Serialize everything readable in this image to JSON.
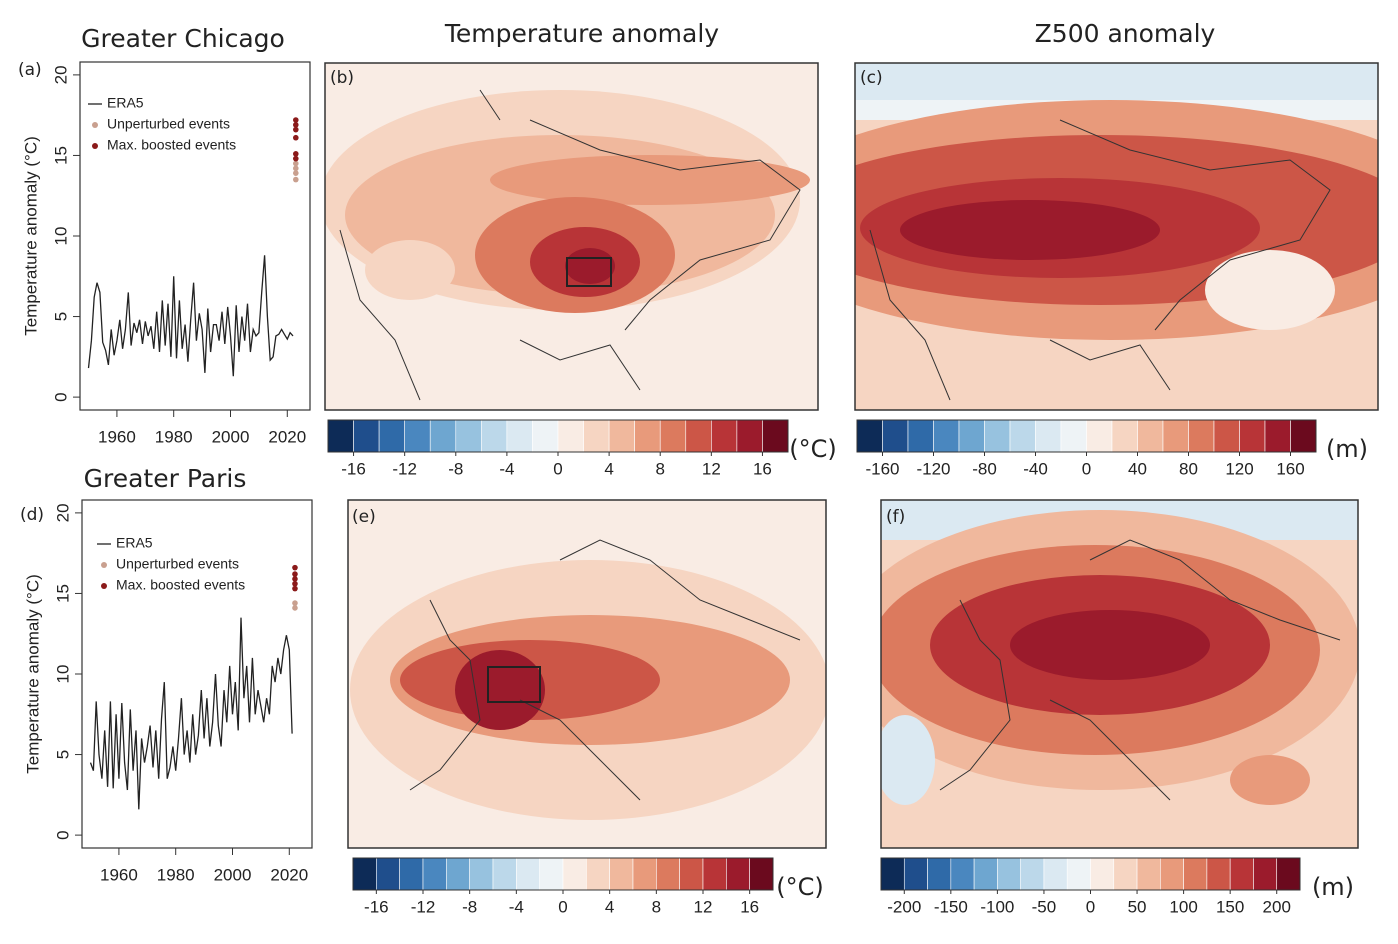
{
  "chart_data": [
    {
      "type": "line",
      "title": "Greater Chicago",
      "panel_label": "(a)",
      "y_label": "Temperature anomaly (°C)",
      "x": [
        1950,
        1951,
        1952,
        1953,
        1954,
        1955,
        1956,
        1957,
        1958,
        1959,
        1960,
        1961,
        1962,
        1963,
        1964,
        1965,
        1966,
        1967,
        1968,
        1969,
        1970,
        1971,
        1972,
        1973,
        1974,
        1975,
        1976,
        1977,
        1978,
        1979,
        1980,
        1981,
        1982,
        1983,
        1984,
        1985,
        1986,
        1987,
        1988,
        1989,
        1990,
        1991,
        1992,
        1993,
        1994,
        1995,
        1996,
        1997,
        1998,
        1999,
        2000,
        2001,
        2002,
        2003,
        2004,
        2005,
        2006,
        2007,
        2008,
        2009,
        2010,
        2011,
        2012,
        2013,
        2014,
        2015,
        2016,
        2017,
        2018,
        2019,
        2020,
        2021,
        2022
      ],
      "series": [
        {
          "name": "ERA5",
          "type": "line",
          "color": "#222222",
          "values": [
            1.8,
            3.5,
            6.2,
            7.1,
            6.5,
            3.4,
            2.9,
            2.0,
            4.2,
            2.6,
            3.5,
            4.8,
            3.0,
            4.2,
            6.5,
            3.2,
            4.6,
            4.0,
            4.8,
            3.3,
            4.7,
            3.8,
            4.4,
            3.0,
            5.3,
            2.8,
            6.0,
            3.2,
            5.8,
            2.5,
            7.5,
            2.4,
            6.0,
            3.0,
            4.5,
            2.2,
            4.8,
            7.1,
            3.5,
            5.2,
            4.2,
            1.5,
            5.5,
            2.8,
            4.5,
            4.5,
            3.5,
            5.3,
            3.3,
            5.6,
            3.8,
            1.3,
            5.7,
            2.8,
            5.0,
            3.5,
            5.8,
            2.8,
            4.2,
            3.8,
            4.0,
            6.5,
            8.8,
            5.0,
            2.3,
            2.5,
            3.8,
            3.9,
            4.2,
            3.9,
            3.6,
            4.0,
            3.8
          ]
        },
        {
          "name": "Unperturbed events",
          "type": "scatter",
          "color": "#c9a08f",
          "x": [
            2023,
            2023,
            2023,
            2023
          ],
          "values": [
            13.5,
            13.9,
            14.2,
            14.5
          ]
        },
        {
          "name": "Max. boosted events",
          "type": "scatter",
          "color": "#8b1a1a",
          "x": [
            2023,
            2023,
            2023,
            2023,
            2023,
            2023
          ],
          "values": [
            14.8,
            15.1,
            16.1,
            16.6,
            16.9,
            17.2
          ]
        }
      ],
      "xlim": [
        1947,
        2028
      ],
      "xticks": [
        1960,
        1980,
        2000,
        2020
      ],
      "ylim": [
        -0.8,
        20.8
      ],
      "yticks": [
        0,
        5,
        10,
        15,
        20
      ],
      "legend": "upper left"
    },
    {
      "type": "map",
      "title": "Temperature anomaly",
      "panel_label": "(b)"
    },
    {
      "type": "map",
      "title": "Z500 anomaly",
      "panel_label": "(c)"
    },
    {
      "type": "colorbar",
      "unit": "(°C)",
      "bins": [
        -18,
        -16,
        -14,
        -12,
        -10,
        -8,
        -6,
        -4,
        -2,
        0,
        2,
        4,
        6,
        8,
        10,
        12,
        14,
        16,
        18
      ],
      "colors": [
        "#0d2b57",
        "#1f4e8c",
        "#2f6aa8",
        "#4a87bf",
        "#6ea6d0",
        "#97c2df",
        "#bcd8ea",
        "#dbe9f2",
        "#eef3f6",
        "#f9ece4",
        "#f6d5c2",
        "#f0b89d",
        "#e89a7b",
        "#dc7a5e",
        "#cc5647",
        "#b83437",
        "#9b1b2c",
        "#6b0a1e"
      ],
      "xlim": [
        -18,
        18
      ],
      "xticks": [
        -16,
        -12,
        -8,
        -4,
        0,
        4,
        8,
        12,
        16
      ]
    },
    {
      "type": "colorbar",
      "unit": "(m)",
      "bins": [
        -180,
        -160,
        -140,
        -120,
        -100,
        -80,
        -60,
        -40,
        -20,
        0,
        20,
        40,
        60,
        80,
        100,
        120,
        140,
        160,
        180
      ],
      "colors": [
        "#0d2b57",
        "#1f4e8c",
        "#2f6aa8",
        "#4a87bf",
        "#6ea6d0",
        "#97c2df",
        "#bcd8ea",
        "#dbe9f2",
        "#eef3f6",
        "#f9ece4",
        "#f6d5c2",
        "#f0b89d",
        "#e89a7b",
        "#dc7a5e",
        "#cc5647",
        "#b83437",
        "#9b1b2c",
        "#6b0a1e"
      ],
      "xlim": [
        -180,
        180
      ],
      "xticks": [
        -160,
        -120,
        -80,
        -40,
        0,
        40,
        80,
        120,
        160
      ]
    },
    {
      "type": "line",
      "title": "Greater Paris",
      "panel_label": "(d)",
      "y_label": "Temperature anomaly (°C)",
      "x": [
        1950,
        1951,
        1952,
        1953,
        1954,
        1955,
        1956,
        1957,
        1958,
        1959,
        1960,
        1961,
        1962,
        1963,
        1964,
        1965,
        1966,
        1967,
        1968,
        1969,
        1970,
        1971,
        1972,
        1973,
        1974,
        1975,
        1976,
        1977,
        1978,
        1979,
        1980,
        1981,
        1982,
        1983,
        1984,
        1985,
        1986,
        1987,
        1988,
        1989,
        1990,
        1991,
        1992,
        1993,
        1994,
        1995,
        1996,
        1997,
        1998,
        1999,
        2000,
        2001,
        2002,
        2003,
        2004,
        2005,
        2006,
        2007,
        2008,
        2009,
        2010,
        2011,
        2012,
        2013,
        2014,
        2015,
        2016,
        2017,
        2018,
        2019,
        2020,
        2021
      ],
      "series": [
        {
          "name": "ERA5",
          "type": "line",
          "color": "#222222",
          "values": [
            4.5,
            4.0,
            8.3,
            5.0,
            3.5,
            6.5,
            3.0,
            8.3,
            2.9,
            7.5,
            3.5,
            8.2,
            4.5,
            2.8,
            7.8,
            4.0,
            6.5,
            1.6,
            6.0,
            4.5,
            5.5,
            6.8,
            4.2,
            6.5,
            3.5,
            7.2,
            9.5,
            3.5,
            4.2,
            5.5,
            4.0,
            6.0,
            8.5,
            5.0,
            6.5,
            4.5,
            7.5,
            5.0,
            6.2,
            9.0,
            6.0,
            8.5,
            5.5,
            7.0,
            10.0,
            6.8,
            5.5,
            9.0,
            7.0,
            10.5,
            7.5,
            9.5,
            6.5,
            13.5,
            8.5,
            10.5,
            7.0,
            11.0,
            7.5,
            9.0,
            8.0,
            7.0,
            8.5,
            7.5,
            10.5,
            9.5,
            11.0,
            10.0,
            11.5,
            12.4,
            11.5,
            6.3
          ]
        },
        {
          "name": "Unperturbed events",
          "type": "scatter",
          "color": "#c9a08f",
          "x": [
            2022,
            2022
          ],
          "values": [
            14.1,
            14.4
          ]
        },
        {
          "name": "Max. boosted events",
          "type": "scatter",
          "color": "#8b1a1a",
          "x": [
            2022,
            2022,
            2022,
            2022,
            2022
          ],
          "values": [
            15.3,
            15.6,
            15.9,
            16.2,
            16.6
          ]
        }
      ],
      "xlim": [
        1947,
        2028
      ],
      "xticks": [
        1960,
        1980,
        2000,
        2020
      ],
      "ylim": [
        -0.8,
        20.8
      ],
      "yticks": [
        0,
        5,
        10,
        15,
        20
      ],
      "legend": "upper left"
    },
    {
      "type": "map",
      "panel_label": "(e)"
    },
    {
      "type": "map",
      "panel_label": "(f)"
    },
    {
      "type": "colorbar",
      "unit": "(°C)",
      "bins": [
        -18,
        -16,
        -14,
        -12,
        -10,
        -8,
        -6,
        -4,
        -2,
        0,
        2,
        4,
        6,
        8,
        10,
        12,
        14,
        16,
        18
      ],
      "colors": [
        "#0d2b57",
        "#1f4e8c",
        "#2f6aa8",
        "#4a87bf",
        "#6ea6d0",
        "#97c2df",
        "#bcd8ea",
        "#dbe9f2",
        "#eef3f6",
        "#f9ece4",
        "#f6d5c2",
        "#f0b89d",
        "#e89a7b",
        "#dc7a5e",
        "#cc5647",
        "#b83437",
        "#9b1b2c",
        "#6b0a1e"
      ],
      "xlim": [
        -18,
        18
      ],
      "xticks": [
        -16,
        -12,
        -8,
        -4,
        0,
        4,
        8,
        12,
        16
      ]
    },
    {
      "type": "colorbar",
      "unit": "(m)",
      "bins": [
        -225,
        -200,
        -175,
        -150,
        -125,
        -100,
        -75,
        -50,
        -25,
        0,
        25,
        50,
        75,
        100,
        125,
        150,
        175,
        200,
        225
      ],
      "colors": [
        "#0d2b57",
        "#1f4e8c",
        "#2f6aa8",
        "#4a87bf",
        "#6ea6d0",
        "#97c2df",
        "#bcd8ea",
        "#dbe9f2",
        "#eef3f6",
        "#f9ece4",
        "#f6d5c2",
        "#f0b89d",
        "#e89a7b",
        "#dc7a5e",
        "#cc5647",
        "#b83437",
        "#9b1b2c",
        "#6b0a1e"
      ],
      "xlim": [
        -225,
        225
      ],
      "xticks": [
        -200,
        -150,
        -100,
        -50,
        0,
        50,
        100,
        150,
        200
      ]
    }
  ]
}
